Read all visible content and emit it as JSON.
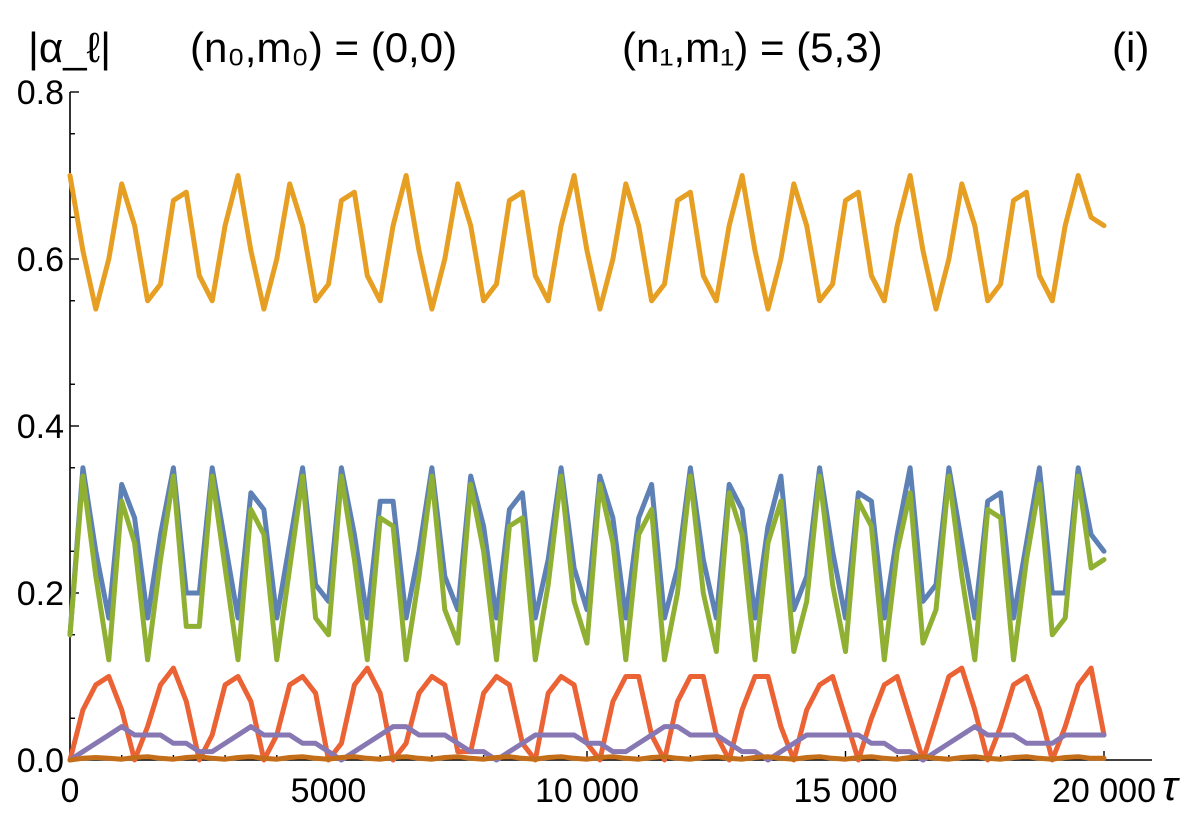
{
  "chart_data": {
    "type": "line",
    "ylabel": "|α_ℓ|",
    "xlabel": "τ",
    "title_parts": {
      "left": "(n₀,m₀) = (0,0)",
      "right": "(n₁,m₁) = (5,3)",
      "panel": "(i)"
    },
    "xlim": [
      0,
      20000
    ],
    "ylim": [
      0,
      0.8
    ],
    "x_ticks": [
      0,
      5000,
      10000,
      15000,
      20000
    ],
    "x_tick_labels": [
      "0",
      "5000",
      "10 000",
      "15 000",
      "20 000"
    ],
    "y_ticks": [
      0.0,
      0.2,
      0.4,
      0.6,
      0.8
    ],
    "y_tick_labels": [
      "0.0",
      "0.2",
      "0.4",
      "0.6",
      "0.8"
    ],
    "grid": false,
    "series": [
      {
        "name": "orange",
        "color": "#e69f23",
        "x_start": 0,
        "x_step": 250,
        "values": [
          0.7,
          0.61,
          0.54,
          0.6,
          0.69,
          0.64,
          0.55,
          0.57,
          0.67,
          0.68,
          0.58,
          0.55,
          0.64,
          0.7,
          0.61,
          0.54,
          0.6,
          0.69,
          0.64,
          0.55,
          0.57,
          0.67,
          0.68,
          0.58,
          0.55,
          0.64,
          0.7,
          0.61,
          0.54,
          0.6,
          0.69,
          0.64,
          0.55,
          0.57,
          0.67,
          0.68,
          0.58,
          0.55,
          0.64,
          0.7,
          0.61,
          0.54,
          0.6,
          0.69,
          0.64,
          0.55,
          0.57,
          0.67,
          0.68,
          0.58,
          0.55,
          0.64,
          0.7,
          0.61,
          0.54,
          0.6,
          0.69,
          0.64,
          0.55,
          0.57,
          0.67,
          0.68,
          0.58,
          0.55,
          0.64,
          0.7,
          0.61,
          0.54,
          0.6,
          0.69,
          0.64,
          0.55,
          0.57,
          0.67,
          0.68,
          0.58,
          0.55,
          0.64,
          0.7,
          0.65,
          0.64
        ]
      },
      {
        "name": "blue",
        "color": "#5e81b5",
        "x_start": 0,
        "x_step": 250,
        "values": [
          0.15,
          0.35,
          0.25,
          0.17,
          0.33,
          0.29,
          0.17,
          0.27,
          0.35,
          0.2,
          0.2,
          0.35,
          0.26,
          0.17,
          0.32,
          0.3,
          0.17,
          0.26,
          0.35,
          0.21,
          0.19,
          0.35,
          0.27,
          0.17,
          0.31,
          0.31,
          0.17,
          0.25,
          0.35,
          0.22,
          0.18,
          0.34,
          0.28,
          0.17,
          0.3,
          0.32,
          0.17,
          0.24,
          0.35,
          0.23,
          0.18,
          0.34,
          0.29,
          0.17,
          0.29,
          0.33,
          0.17,
          0.23,
          0.35,
          0.24,
          0.17,
          0.33,
          0.3,
          0.17,
          0.28,
          0.34,
          0.18,
          0.22,
          0.35,
          0.25,
          0.17,
          0.32,
          0.31,
          0.17,
          0.27,
          0.35,
          0.19,
          0.21,
          0.35,
          0.26,
          0.17,
          0.31,
          0.32,
          0.17,
          0.26,
          0.35,
          0.2,
          0.2,
          0.35,
          0.27,
          0.25
        ]
      },
      {
        "name": "green",
        "color": "#8fb032",
        "x_start": 0,
        "x_step": 250,
        "values": [
          0.15,
          0.34,
          0.22,
          0.12,
          0.31,
          0.26,
          0.12,
          0.24,
          0.34,
          0.16,
          0.16,
          0.34,
          0.23,
          0.12,
          0.3,
          0.27,
          0.12,
          0.23,
          0.34,
          0.17,
          0.15,
          0.34,
          0.24,
          0.12,
          0.29,
          0.28,
          0.12,
          0.22,
          0.34,
          0.18,
          0.14,
          0.33,
          0.25,
          0.12,
          0.28,
          0.29,
          0.12,
          0.21,
          0.34,
          0.19,
          0.14,
          0.33,
          0.26,
          0.12,
          0.27,
          0.3,
          0.12,
          0.2,
          0.34,
          0.2,
          0.13,
          0.32,
          0.27,
          0.12,
          0.26,
          0.31,
          0.13,
          0.19,
          0.34,
          0.21,
          0.13,
          0.31,
          0.28,
          0.12,
          0.25,
          0.32,
          0.14,
          0.18,
          0.34,
          0.22,
          0.12,
          0.3,
          0.29,
          0.12,
          0.24,
          0.33,
          0.15,
          0.17,
          0.34,
          0.23,
          0.24
        ]
      },
      {
        "name": "red",
        "color": "#eb6235",
        "x_start": 0,
        "x_step": 250,
        "values": [
          0.0,
          0.06,
          0.09,
          0.1,
          0.06,
          0.0,
          0.04,
          0.09,
          0.11,
          0.07,
          0.0,
          0.03,
          0.09,
          0.1,
          0.07,
          0.0,
          0.03,
          0.09,
          0.1,
          0.08,
          0.0,
          0.02,
          0.09,
          0.11,
          0.08,
          0.0,
          0.02,
          0.08,
          0.1,
          0.09,
          0.01,
          0.01,
          0.08,
          0.1,
          0.09,
          0.02,
          0.0,
          0.08,
          0.1,
          0.09,
          0.02,
          0.0,
          0.07,
          0.1,
          0.1,
          0.03,
          0.0,
          0.07,
          0.1,
          0.1,
          0.03,
          0.0,
          0.06,
          0.1,
          0.1,
          0.04,
          0.0,
          0.06,
          0.09,
          0.1,
          0.05,
          0.0,
          0.05,
          0.09,
          0.1,
          0.05,
          0.0,
          0.05,
          0.1,
          0.11,
          0.06,
          0.0,
          0.04,
          0.09,
          0.1,
          0.06,
          0.0,
          0.04,
          0.09,
          0.11,
          0.03
        ]
      },
      {
        "name": "purple",
        "color": "#8778b3",
        "x_start": 0,
        "x_step": 250,
        "values": [
          0.0,
          0.01,
          0.02,
          0.03,
          0.04,
          0.03,
          0.03,
          0.03,
          0.02,
          0.02,
          0.01,
          0.01,
          0.02,
          0.03,
          0.04,
          0.03,
          0.03,
          0.03,
          0.02,
          0.02,
          0.01,
          0.0,
          0.01,
          0.02,
          0.03,
          0.04,
          0.04,
          0.03,
          0.03,
          0.03,
          0.02,
          0.01,
          0.01,
          0.0,
          0.01,
          0.02,
          0.03,
          0.03,
          0.03,
          0.03,
          0.02,
          0.02,
          0.01,
          0.01,
          0.02,
          0.03,
          0.04,
          0.04,
          0.03,
          0.03,
          0.03,
          0.02,
          0.01,
          0.01,
          0.0,
          0.01,
          0.02,
          0.03,
          0.03,
          0.03,
          0.03,
          0.03,
          0.02,
          0.02,
          0.01,
          0.01,
          0.0,
          0.01,
          0.02,
          0.03,
          0.04,
          0.03,
          0.03,
          0.03,
          0.02,
          0.02,
          0.02,
          0.03,
          0.03,
          0.03,
          0.03
        ]
      },
      {
        "name": "brown",
        "color": "#c56e1a",
        "x_start": 0,
        "x_step": 250,
        "values": [
          0.0,
          0.002,
          0.003,
          0.002,
          0.001,
          0.003,
          0.004,
          0.002,
          0.001,
          0.003,
          0.004,
          0.002,
          0.001,
          0.003,
          0.004,
          0.002,
          0.001,
          0.003,
          0.004,
          0.002,
          0.001,
          0.003,
          0.004,
          0.002,
          0.001,
          0.003,
          0.004,
          0.002,
          0.001,
          0.003,
          0.004,
          0.002,
          0.001,
          0.003,
          0.004,
          0.002,
          0.001,
          0.003,
          0.004,
          0.002,
          0.001,
          0.003,
          0.004,
          0.002,
          0.001,
          0.003,
          0.004,
          0.002,
          0.001,
          0.003,
          0.004,
          0.002,
          0.001,
          0.003,
          0.004,
          0.002,
          0.001,
          0.003,
          0.004,
          0.002,
          0.001,
          0.003,
          0.004,
          0.002,
          0.001,
          0.003,
          0.004,
          0.002,
          0.001,
          0.003,
          0.004,
          0.002,
          0.001,
          0.003,
          0.004,
          0.002,
          0.001,
          0.003,
          0.004,
          0.002,
          0.002
        ]
      }
    ]
  }
}
